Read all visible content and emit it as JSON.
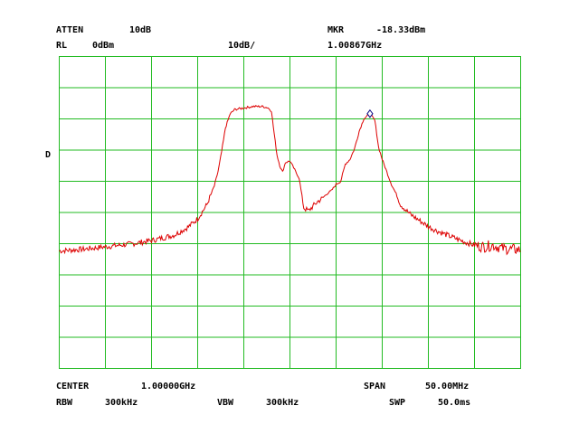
{
  "header": {
    "atten_label": "ATTEN",
    "atten_value": "10dB",
    "mkr_label": "MKR",
    "mkr_value": "-18.33dBm",
    "rl_label": "RL",
    "rl_value": "0dBm",
    "scale_value": "10dB/",
    "mkr_freq": "1.00867GHz"
  },
  "side": {
    "detector_mark": "D"
  },
  "footer": {
    "center_label": "CENTER",
    "center_value": "1.00000GHz",
    "span_label": "SPAN",
    "span_value": "50.00MHz",
    "rbw_label": "RBW",
    "rbw_value": "300kHz",
    "vbw_label": "VBW",
    "vbw_value": "300kHz",
    "swp_label": "SWP",
    "swp_value": "50.0ms"
  },
  "chart_data": {
    "type": "line",
    "x_unit": "MHz",
    "y_unit": "dBm",
    "xlim": [
      975,
      1025
    ],
    "ylim": [
      -100,
      0
    ],
    "x_divisions": 10,
    "y_divisions": 10,
    "grid": true,
    "colors": {
      "grid": "#22bb22",
      "trace": "#dd0000",
      "marker": "#000080"
    },
    "marker": {
      "x": 1008.67,
      "y": -18.33
    },
    "series": [
      {
        "x": [
          975.0,
          977.5,
          980.0,
          982.5,
          985.0,
          987.5,
          989.0,
          990.0,
          991.0,
          991.8,
          992.2,
          992.6,
          993.0,
          993.5,
          994.0,
          995.0,
          996.0,
          997.0,
          997.6,
          998.0,
          998.3,
          998.6,
          998.9,
          999.2,
          999.5,
          1000.0,
          1001.0,
          1001.5,
          1002.0,
          1002.5,
          1003.0,
          1003.5,
          1004.0,
          1004.5,
          1005.0,
          1005.5,
          1006.0,
          1006.5,
          1007.0,
          1007.5,
          1008.0,
          1008.67,
          1009.2,
          1009.6,
          1010.0,
          1010.5,
          1011.0,
          1011.5,
          1012.0,
          1013.0,
          1014.0,
          1015.0,
          1016.0,
          1017.5,
          1019.0,
          1020.0,
          1021.0,
          1022.0,
          1023.0,
          1024.0,
          1025.0
        ],
        "y": [
          -62.3,
          -61.8,
          -61.0,
          -60.2,
          -59.0,
          -57.2,
          -54.6,
          -52.0,
          -47.5,
          -41.5,
          -37.0,
          -30.5,
          -23.0,
          -18.5,
          -17.0,
          -16.5,
          -16.0,
          -16.0,
          -16.4,
          -17.5,
          -25.0,
          -31.6,
          -35.0,
          -37.0,
          -34.0,
          -33.5,
          -39.0,
          -48.5,
          -49.5,
          -48.0,
          -46.5,
          -45.5,
          -44.0,
          -43.0,
          -41.0,
          -40.0,
          -34.5,
          -33.0,
          -29.5,
          -24.0,
          -20.0,
          -18.33,
          -20.5,
          -29.0,
          -33.0,
          -37.0,
          -41.0,
          -44.0,
          -47.5,
          -50.5,
          -52.5,
          -54.5,
          -56.0,
          -57.8,
          -59.5,
          -60.5,
          -61.0,
          -60.5,
          -61.5,
          -61.8,
          -62.0
        ]
      }
    ]
  }
}
